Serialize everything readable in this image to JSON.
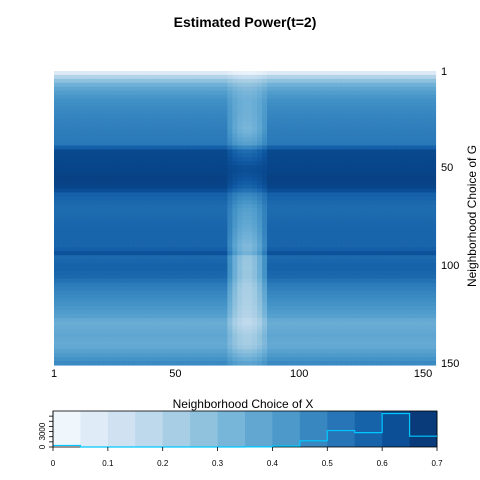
{
  "chart_data": [
    {
      "type": "heatmap",
      "title": "Estimated Power(t=2)",
      "xlabel": "Neighborhood Choice of X",
      "ylabel": "Neighborhood Choice of G",
      "x_range": [
        1,
        154
      ],
      "y_range": [
        1,
        150
      ],
      "x_ticks": [
        "1",
        "50",
        "100",
        "150"
      ],
      "y_ticks": [
        "1",
        "50",
        "100",
        "150"
      ],
      "y_axis_side": "right",
      "y_reversed": true,
      "value_range": [
        0,
        0.7
      ],
      "colormap": "Blues",
      "row_power_profile": {
        "g": [
          1,
          3,
          6,
          10,
          15,
          22,
          30,
          38,
          40,
          50,
          55,
          60,
          63,
          70,
          80,
          90,
          93,
          95,
          100,
          105,
          110,
          118,
          125,
          128,
          135,
          140,
          145,
          150
        ],
        "power": [
          0.08,
          0.2,
          0.32,
          0.4,
          0.45,
          0.48,
          0.5,
          0.52,
          0.64,
          0.65,
          0.66,
          0.65,
          0.58,
          0.55,
          0.57,
          0.57,
          0.62,
          0.56,
          0.58,
          0.56,
          0.5,
          0.45,
          0.4,
          0.35,
          0.38,
          0.36,
          0.42,
          0.48
        ]
      },
      "low_power_band": {
        "x_center": 78,
        "x_half_width": 9,
        "drop": [
          {
            "g": 1,
            "value": 0.04
          },
          {
            "g": 30,
            "value": 0.18
          },
          {
            "g": 50,
            "value": 0.02
          },
          {
            "g": 62,
            "value": 0.1
          },
          {
            "g": 100,
            "value": 0.33
          },
          {
            "g": 150,
            "value": 0.08
          }
        ]
      }
    },
    {
      "type": "bar",
      "title": "",
      "x_ticks": [
        "0",
        "0.1",
        "0.2",
        "0.3",
        "0.4",
        "0.5",
        "0.6",
        "0.7"
      ],
      "y_ticks": [
        "0",
        "3000"
      ],
      "xlim": [
        0,
        0.7
      ],
      "ylim": [
        0,
        7000
      ],
      "bin_width": 0.05,
      "bin_starts": [
        0,
        0.05,
        0.1,
        0.15,
        0.2,
        0.25,
        0.3,
        0.35,
        0.4,
        0.45,
        0.5,
        0.55,
        0.6,
        0.65
      ],
      "counts": [
        300,
        0,
        0,
        0,
        0,
        0,
        0,
        20,
        200,
        1200,
        3200,
        2800,
        6500,
        2100
      ],
      "line_color": "#00c8ff"
    }
  ]
}
